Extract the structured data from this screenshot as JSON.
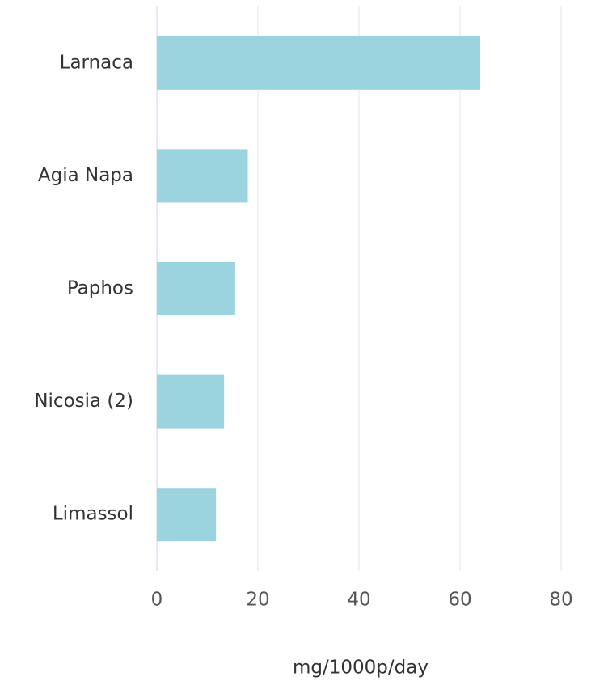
{
  "chart_data": {
    "type": "bar",
    "orientation": "horizontal",
    "categories": [
      "Larnaca",
      "Agia Napa",
      "Paphos",
      "Nicosia (2)",
      "Limassol"
    ],
    "values": [
      64,
      18,
      15.5,
      13.3,
      11.7
    ],
    "color": "#9bd3de",
    "x_label": "mg/1000p/day",
    "xlim": [
      0,
      80
    ],
    "xticks": [
      0,
      20,
      40,
      60,
      80
    ],
    "grid": true
  }
}
